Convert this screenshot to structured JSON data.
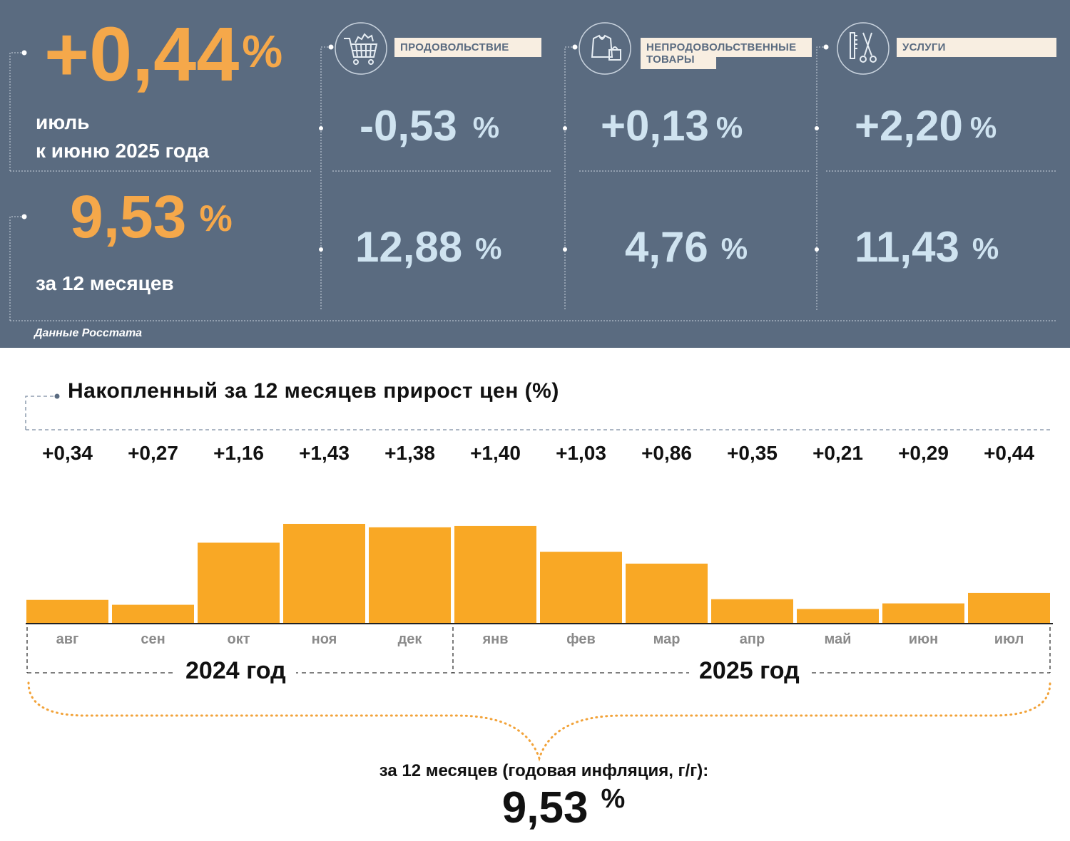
{
  "header": {
    "monthly": {
      "value": "+0,44",
      "unit": "%",
      "caption_line1": "июль",
      "caption_line2": "к июню 2025 года"
    },
    "annual": {
      "value": "9,53",
      "unit": "%",
      "caption": "за 12 месяцев"
    },
    "categories": [
      {
        "label": "ПРОДОВОЛЬСТВИЕ",
        "icon": "shopping-cart-icon",
        "monthly": "-0,53",
        "annual": "12,88",
        "unit": "%"
      },
      {
        "label": "НЕПРОДОВОЛЬСТВЕННЫЕ ТОВАРЫ",
        "label_line1": "НЕПРОДОВОЛЬСТВЕННЫЕ",
        "label_line2": "ТОВАРЫ",
        "icon": "clothing-bag-icon",
        "monthly": "+0,13",
        "annual": "4,76",
        "unit": "%"
      },
      {
        "label": "УСЛУГИ",
        "icon": "comb-scissors-icon",
        "monthly": "+2,20",
        "annual": "11,43",
        "unit": "%"
      }
    ],
    "source": "Данные Росстата"
  },
  "colors": {
    "panel_bg": "#5a6b80",
    "accent_orange": "#f5a84a",
    "value_blue": "#cfe3f0",
    "bar_fill": "#f9a825",
    "tag_bg": "#f8eee1"
  },
  "chart_data": {
    "type": "bar",
    "title": "Накопленный за 12 месяцев прирост цен (%)",
    "categories": [
      "авг",
      "сен",
      "окт",
      "ноя",
      "дек",
      "янв",
      "фев",
      "мар",
      "апр",
      "май",
      "июн",
      "июл"
    ],
    "values": [
      0.34,
      0.27,
      1.16,
      1.43,
      1.38,
      1.4,
      1.03,
      0.86,
      0.35,
      0.21,
      0.29,
      0.44
    ],
    "value_labels": [
      "+0,34",
      "+0,27",
      "+1,16",
      "+1,43",
      "+1,38",
      "+1,40",
      "+1,03",
      "+0,86",
      "+0,35",
      "+0,21",
      "+0,29",
      "+0,44"
    ],
    "year_groups": [
      {
        "label": "2024 год",
        "from": 0,
        "to": 4
      },
      {
        "label": "2025 год",
        "from": 5,
        "to": 11
      }
    ],
    "ylim": [
      0,
      1.43
    ],
    "grid": false,
    "legend": "none"
  },
  "summary": {
    "caption": "за 12 месяцев (годовая инфляция, г/г):",
    "value": "9,53",
    "unit": "%"
  }
}
